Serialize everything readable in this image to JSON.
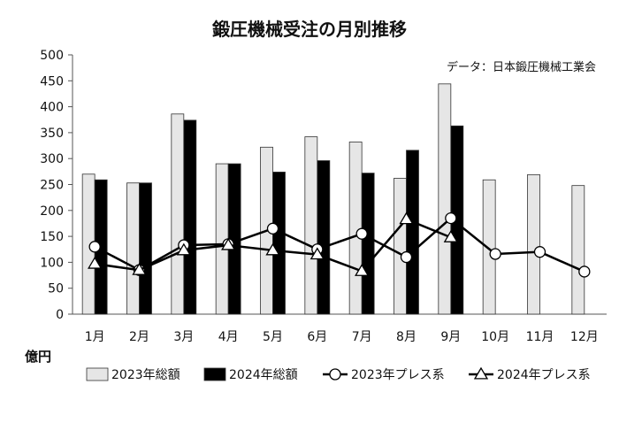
{
  "chart_data": {
    "type": "bar",
    "title": "鍛圧機械受注の月別推移",
    "source_note": "データ：日本鍛圧機械工業会",
    "ylabel": "億円",
    "xlabel": "",
    "ylim": [
      0,
      500
    ],
    "yticks": [
      0,
      50,
      100,
      150,
      200,
      250,
      300,
      350,
      400,
      450,
      500
    ],
    "grid": false,
    "legend_position": "bottom",
    "categories": [
      "1月",
      "2月",
      "3月",
      "4月",
      "5月",
      "6月",
      "7月",
      "8月",
      "9月",
      "10月",
      "11月",
      "12月"
    ],
    "series": [
      {
        "name": "2023年総額",
        "kind": "bar",
        "color": "#e6e6e6",
        "values": [
          270,
          253,
          386,
          290,
          322,
          342,
          332,
          262,
          444,
          259,
          269,
          248
        ]
      },
      {
        "name": "2024年総額",
        "kind": "bar",
        "color": "#000000",
        "values": [
          259,
          253,
          374,
          290,
          274,
          296,
          272,
          316,
          363,
          null,
          null,
          null
        ]
      },
      {
        "name": "2023年プレス系",
        "kind": "line",
        "marker": "circle",
        "color": "#000000",
        "values": [
          130,
          85,
          133,
          135,
          165,
          125,
          155,
          110,
          185,
          116,
          120,
          82
        ]
      },
      {
        "name": "2024年プレス系",
        "kind": "line",
        "marker": "triangle",
        "color": "#000000",
        "values": [
          97,
          85,
          123,
          133,
          123,
          115,
          83,
          183,
          148,
          null,
          null,
          null
        ]
      }
    ]
  }
}
